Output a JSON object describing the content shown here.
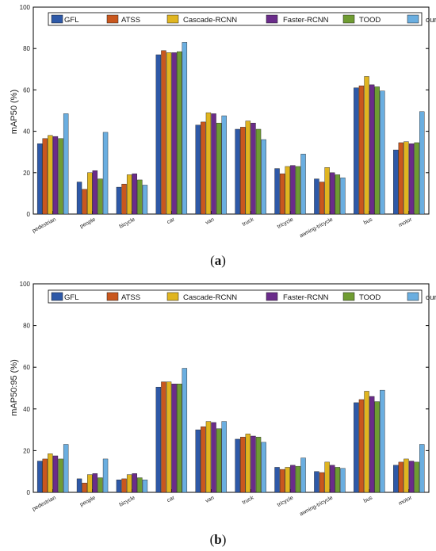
{
  "chart_data": [
    {
      "type": "bar",
      "caption_letter": "a",
      "ylabel": "mAP50 (%)",
      "ylim": [
        0,
        100
      ],
      "yticks": [
        "0",
        "20",
        "40",
        "60",
        "80",
        "100"
      ],
      "categories": [
        "pedestrian",
        "people",
        "bicycle",
        "car",
        "van",
        "truck",
        "tricycle",
        "awning-tricycle",
        "bus",
        "motor"
      ],
      "legend_position": "top",
      "series": [
        {
          "name": "GFL",
          "color": "#2e59a8",
          "values": [
            34,
            15.5,
            13,
            77,
            43,
            41,
            22,
            17,
            61,
            31
          ]
        },
        {
          "name": "ATSS",
          "color": "#c9571e",
          "values": [
            36.5,
            12,
            14.5,
            79,
            44.5,
            42,
            19.5,
            15.5,
            62,
            34.5
          ]
        },
        {
          "name": "Cascade-RCNN",
          "color": "#e0b520",
          "values": [
            38,
            20,
            19,
            78,
            49,
            45,
            23,
            22.5,
            66.5,
            35
          ]
        },
        {
          "name": "Faster-RCNN",
          "color": "#6a2c8a",
          "values": [
            37.5,
            21,
            19.5,
            78,
            48.5,
            44,
            23.5,
            20,
            62.5,
            34
          ]
        },
        {
          "name": "TOOD",
          "color": "#6f9c32",
          "values": [
            36.5,
            17,
            16.5,
            78.5,
            44,
            41,
            23,
            19,
            61.5,
            34.5
          ]
        },
        {
          "name": "ours",
          "color": "#6aaee0",
          "values": [
            48.5,
            39.5,
            14,
            83,
            47.5,
            36,
            29,
            17.5,
            59.5,
            49.5
          ]
        }
      ]
    },
    {
      "type": "bar",
      "caption_letter": "b",
      "ylabel": "mAP50:95 (%)",
      "ylim": [
        0,
        100
      ],
      "yticks": [
        "0",
        "20",
        "40",
        "60",
        "80",
        "100"
      ],
      "categories": [
        "pedestrian",
        "people",
        "bicycle",
        "car",
        "van",
        "truck",
        "tricycle",
        "awning-tricycle",
        "bus",
        "motor"
      ],
      "legend_position": "top",
      "series": [
        {
          "name": "GFL",
          "color": "#2e59a8",
          "values": [
            15,
            6.5,
            6,
            50.5,
            30,
            25.5,
            12,
            10,
            43,
            13
          ]
        },
        {
          "name": "ATSS",
          "color": "#c9571e",
          "values": [
            16,
            4.5,
            6.5,
            53,
            31.5,
            26.5,
            11,
            9.5,
            44.5,
            14.5
          ]
        },
        {
          "name": "Cascade-RCNN",
          "color": "#e0b520",
          "values": [
            18.5,
            8.5,
            8.5,
            53,
            34,
            28,
            12,
            14.5,
            48.5,
            16
          ]
        },
        {
          "name": "Faster-RCNN",
          "color": "#6a2c8a",
          "values": [
            17.5,
            9,
            9,
            52,
            33.5,
            27,
            13,
            13,
            46,
            15
          ]
        },
        {
          "name": "TOOD",
          "color": "#6f9c32",
          "values": [
            16,
            7,
            7,
            52,
            30.5,
            26.5,
            12.5,
            12,
            43.5,
            14.5
          ]
        },
        {
          "name": "ours",
          "color": "#6aaee0",
          "values": [
            23,
            16,
            6,
            59.5,
            34,
            24,
            16.5,
            11.5,
            49,
            23
          ]
        }
      ]
    }
  ]
}
